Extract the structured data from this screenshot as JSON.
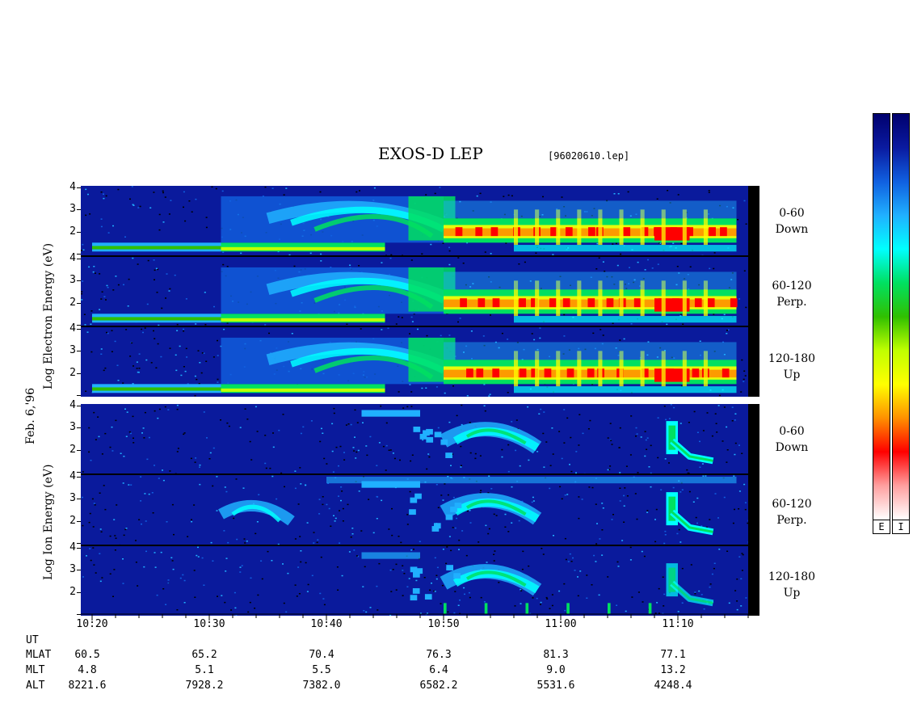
{
  "title": "EXOS-D LEP",
  "filename": "[96020610.lep]",
  "colors": {
    "background_low": "#0a1a9c",
    "bar_scale": [
      "#00006e",
      "#0a1aa0",
      "#1060e0",
      "#20b0ff",
      "#00ffff",
      "#00e060",
      "#30c000",
      "#c0ff00",
      "#ffff00",
      "#ff9000",
      "#ff0000",
      "#ffa0a0",
      "#ffffff"
    ]
  },
  "colorbar": {
    "labels": [
      "E",
      "I"
    ]
  },
  "date_label": "Feb. 6,'96",
  "electron": {
    "axis_label": "Log  Electron  Energy (eV)",
    "panels": [
      {
        "range": "0-60",
        "direction": "Down"
      },
      {
        "range": "60-120",
        "direction": "Perp."
      },
      {
        "range": "120-180",
        "direction": "Up"
      }
    ]
  },
  "ion": {
    "axis_label": "Log  Ion  Energy (eV)",
    "panels": [
      {
        "range": "0-60",
        "direction": "Down"
      },
      {
        "range": "60-120",
        "direction": "Perp."
      },
      {
        "range": "120-180",
        "direction": "Up"
      }
    ]
  },
  "chart_data": {
    "type": "heatmap",
    "title": "EXOS-D LEP",
    "subtitle": "[96020610.lep]",
    "ylabel_electron": "Log  Electron  Energy (eV)",
    "ylabel_ion": "Log  Ion  Energy (eV)",
    "y_ticks": [
      "4",
      "3",
      "2"
    ],
    "ylim": [
      1,
      4
    ],
    "x_ticks": [
      "10:20",
      "10:30",
      "10:40",
      "10:50",
      "11:00",
      "11:10"
    ],
    "x_range_min": [
      0,
      56
    ],
    "ephemeris": {
      "labels": [
        "UT",
        "MLAT",
        "MLT",
        "ALT"
      ],
      "MLAT": [
        "60.5",
        "65.2",
        "70.4",
        "76.3",
        "81.3",
        "77.1"
      ],
      "MLT": [
        "4.8",
        "5.1",
        "5.5",
        "6.4",
        "9.0",
        "13.2"
      ],
      "ALT": [
        "8221.6",
        "7928.2",
        "7382.0",
        "6582.2",
        "5531.6",
        "4248.4"
      ]
    },
    "features": [
      {
        "species": "electron",
        "desc": "low-energy band near 1.3 throughout",
        "t_start_min": 0,
        "t_end_min": 25,
        "logE": 1.3
      },
      {
        "species": "electron",
        "desc": "inverted-V arc",
        "t_start_min": 14,
        "t_end_min": 30,
        "logE_peak": 3.7
      },
      {
        "species": "electron",
        "desc": "intense precipitation",
        "t_start_min": 30,
        "t_end_min": 55,
        "logE": 2.0
      },
      {
        "species": "ion",
        "desc": "ion dispersion",
        "t_start_min": 30,
        "t_end_min": 38,
        "logE": 3.0
      },
      {
        "species": "ion",
        "desc": "cusp ion injection",
        "t_start_min": 48,
        "t_end_min": 53,
        "logE_from": 3.4,
        "logE_to": 1.6
      }
    ]
  }
}
